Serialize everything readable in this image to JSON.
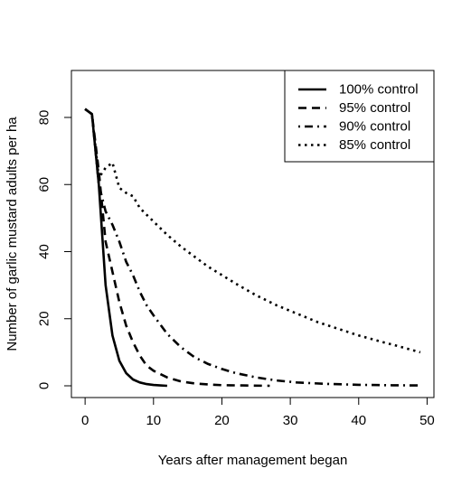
{
  "chart_data": {
    "type": "line",
    "title": "",
    "xlabel": "Years after management began",
    "ylabel": "Number of garlic mustard adults per ha",
    "xlim": [
      -2,
      51
    ],
    "ylim": [
      -3.5,
      94
    ],
    "x_ticks": [
      0,
      10,
      20,
      30,
      40,
      50
    ],
    "y_ticks": [
      0,
      20,
      40,
      60,
      80
    ],
    "grid": false,
    "legend_position": "top-right",
    "series": [
      {
        "name": "100% control",
        "line_style": "solid",
        "x": [
          0,
          1,
          2,
          3,
          4,
          5,
          6,
          7,
          8,
          9,
          10,
          11,
          12
        ],
        "y": [
          82.5,
          81,
          60,
          30,
          15,
          7.5,
          3.8,
          1.9,
          1.0,
          0.5,
          0.25,
          0.1,
          0
        ]
      },
      {
        "name": "95% control",
        "line_style": "dashed",
        "x": [
          0,
          1,
          2,
          3,
          4,
          5,
          6,
          7,
          8,
          9,
          10,
          12,
          14,
          16,
          18,
          20,
          23,
          27
        ],
        "y": [
          82.5,
          81,
          64,
          43,
          34,
          25,
          18,
          13,
          9,
          6,
          4.5,
          2.5,
          1.3,
          0.7,
          0.4,
          0.2,
          0.1,
          0
        ]
      },
      {
        "name": "90% control",
        "line_style": "dotdash",
        "x": [
          0,
          1,
          2,
          3,
          4,
          5,
          6,
          7,
          8,
          9,
          10,
          12,
          14,
          16,
          18,
          20,
          22,
          25,
          28,
          31,
          35,
          40,
          45,
          49
        ],
        "y": [
          82.5,
          81,
          60,
          52,
          48,
          43,
          37,
          33,
          28,
          24,
          21,
          15.5,
          11.5,
          8.5,
          6.5,
          5,
          3.8,
          2.5,
          1.6,
          1,
          0.6,
          0.3,
          0.15,
          0.1
        ]
      },
      {
        "name": "85% control",
        "line_style": "dotted",
        "x": [
          0,
          1,
          2,
          3,
          4,
          5,
          6,
          7,
          8,
          9,
          10,
          12,
          14,
          16,
          18,
          20,
          22,
          25,
          28,
          31,
          34,
          37,
          40,
          43,
          46,
          49
        ],
        "y": [
          82.5,
          81,
          62,
          65,
          66.5,
          59,
          57.5,
          56.5,
          53,
          51,
          49,
          45,
          41.5,
          38.5,
          35.5,
          33,
          30.5,
          27,
          24,
          21.5,
          19,
          17,
          15,
          13.3,
          11.7,
          10
        ]
      }
    ]
  }
}
